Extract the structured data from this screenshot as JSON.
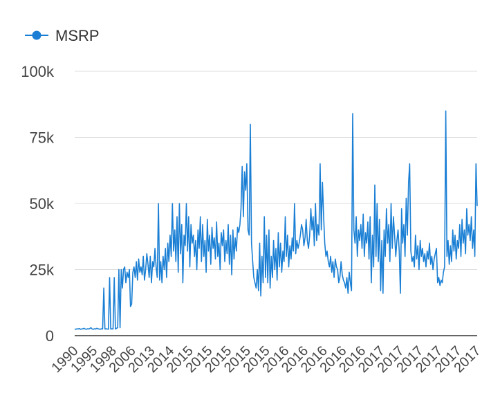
{
  "chart_data": {
    "type": "line",
    "title": "",
    "xlabel": "",
    "ylabel": "",
    "ylim": [
      0,
      100000
    ],
    "grid": true,
    "legend": "top-left",
    "y_ticks": [
      {
        "value": 0,
        "label": "0"
      },
      {
        "value": 25000,
        "label": "25k"
      },
      {
        "value": 50000,
        "label": "50k"
      },
      {
        "value": 75000,
        "label": "75k"
      },
      {
        "value": 100000,
        "label": "100k"
      }
    ],
    "x_tick_labels": [
      "1990",
      "1995",
      "1998",
      "2006",
      "2013",
      "2014",
      "2015",
      "2015",
      "2015",
      "2015",
      "2015",
      "2016",
      "2016",
      "2016",
      "2016",
      "2016",
      "2017",
      "2017",
      "2017",
      "2017",
      "2017",
      "2017"
    ],
    "series": [
      {
        "name": "MSRP",
        "color": "#1a7fd4",
        "values": [
          2500,
          2400,
          2600,
          2500,
          2700,
          2400,
          2500,
          2600,
          2800,
          2500,
          2400,
          2600,
          2500,
          2700,
          3000,
          2500,
          2400,
          2600,
          2500,
          2800,
          2600,
          2500,
          2400,
          2600,
          2500,
          18000,
          2500,
          2600,
          2500,
          2400,
          22000,
          2500,
          2600,
          2500,
          22000,
          2500,
          2800,
          3000,
          25000,
          3000,
          25000,
          18000,
          25000,
          26000,
          20000,
          24000,
          22000,
          25000,
          11000,
          12000,
          24000,
          26000,
          22000,
          28000,
          21000,
          29000,
          24000,
          26000,
          23000,
          30000,
          21000,
          25000,
          31000,
          27000,
          22000,
          30000,
          20000,
          28000,
          26000,
          33000,
          26000,
          22000,
          50000,
          21000,
          28000,
          20000,
          30000,
          25000,
          33000,
          22000,
          35000,
          28000,
          38000,
          30000,
          50000,
          32000,
          40000,
          28000,
          45000,
          24000,
          50000,
          31000,
          42000,
          20000,
          38000,
          34000,
          50000,
          32000,
          45000,
          26000,
          42000,
          35000,
          38000,
          30000,
          36000,
          25000,
          40000,
          33000,
          45000,
          28000,
          42000,
          30000,
          36000,
          24000,
          44000,
          32000,
          38000,
          27000,
          41000,
          33000,
          37000,
          29000,
          43000,
          30000,
          35000,
          25000,
          39000,
          34000,
          40000,
          28000,
          36000,
          31000,
          42000,
          27000,
          38000,
          23000,
          40000,
          29000,
          37000,
          32000,
          41000,
          39000,
          42000,
          48000,
          64000,
          45000,
          62000,
          55000,
          65000,
          40000,
          38000,
          80000,
          35000,
          28000,
          22000,
          20000,
          18000,
          25000,
          17000,
          35000,
          15000,
          30000,
          20000,
          45000,
          22000,
          38000,
          20000,
          40000,
          18000,
          30000,
          22000,
          36000,
          25000,
          33000,
          21000,
          39000,
          26000,
          35000,
          24000,
          32000,
          28000,
          45000,
          30000,
          38000,
          26000,
          34000,
          29000,
          37000,
          32000,
          50000,
          31000,
          36000,
          33000,
          35000,
          38000,
          42000,
          40000,
          34000,
          37000,
          44000,
          36000,
          33000,
          38000,
          48000,
          40000,
          45000,
          34000,
          50000,
          36000,
          42000,
          38000,
          65000,
          40000,
          58000,
          45000,
          35000,
          30000,
          32000,
          28000,
          26000,
          30000,
          24000,
          28000,
          22000,
          29000,
          26000,
          25000,
          20000,
          22000,
          28000,
          23000,
          21000,
          20000,
          18000,
          22000,
          16000,
          24000,
          20000,
          17000,
          84000,
          40000,
          35000,
          45000,
          30000,
          40000,
          36000,
          42000,
          33000,
          46000,
          30000,
          39000,
          35000,
          43000,
          29000,
          45000,
          20000,
          38000,
          26000,
          57000,
          30000,
          50000,
          28000,
          44000,
          17000,
          36000,
          16000,
          40000,
          30000,
          48000,
          35000,
          42000,
          28000,
          50000,
          33000,
          45000,
          38000,
          30000,
          36000,
          40000,
          32000,
          16000,
          48000,
          35000,
          42000,
          30000,
          52000,
          38000,
          58000,
          65000,
          32000,
          28000,
          30000,
          26000,
          38000,
          29000,
          34000,
          25000,
          36000,
          30000,
          33000,
          28000,
          31000,
          26000,
          32000,
          29000,
          35000,
          27000,
          30000,
          25000,
          29000,
          31000,
          33000,
          20000,
          22000,
          19000,
          21000,
          20000,
          24000,
          26000,
          85000,
          30000,
          36000,
          27000,
          34000,
          28000,
          40000,
          32000,
          38000,
          29000,
          36000,
          33000,
          42000,
          30000,
          44000,
          35000,
          40000,
          31000,
          48000,
          38000,
          42000,
          36000,
          45000,
          33000,
          40000,
          30000,
          65000,
          49000
        ]
      }
    ]
  }
}
